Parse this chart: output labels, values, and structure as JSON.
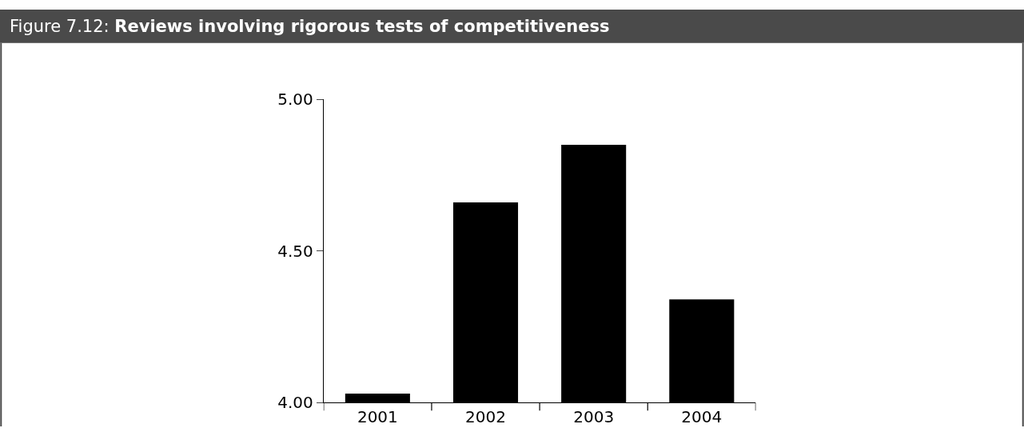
{
  "chart_data": {
    "type": "bar",
    "title": "Figure 7.12: Reviews involving rigorous tests of competitiveness",
    "categories": [
      "2001",
      "2002",
      "2003",
      "2004"
    ],
    "values": [
      4.03,
      4.66,
      4.85,
      4.34
    ],
    "color": "#000000",
    "ylim": [
      4.0,
      5.0
    ],
    "yticks": [
      {
        "value": 4.0,
        "label": "4.00"
      },
      {
        "value": 4.5,
        "label": "4.50"
      },
      {
        "value": 5.0,
        "label": "5.00"
      }
    ]
  }
}
